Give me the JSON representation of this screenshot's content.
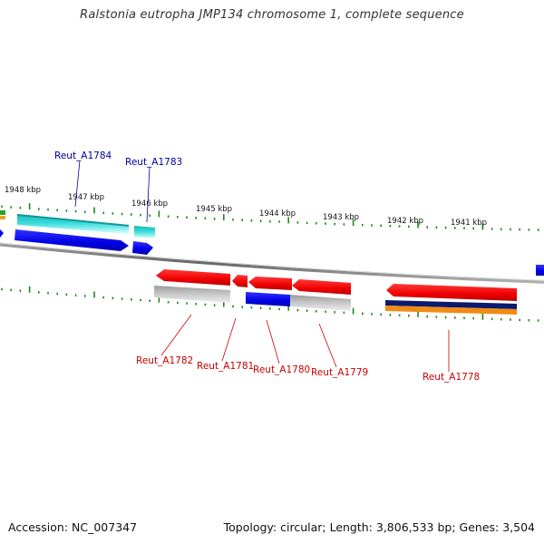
{
  "title": "Ralstonia eutropha JMP134 chromosome 1, complete sequence",
  "footer": {
    "accession": "Accession: NC_007347",
    "summary": "Topology: circular; Length: 3,806,533 bp; Genes: 3,504"
  },
  "scale_labels": [
    "1948 kbp",
    "1947 kbp",
    "1946 kbp",
    "1945 kbp",
    "1944 kbp",
    "1943 kbp",
    "1942 kbp",
    "1941 kbp"
  ],
  "genes_top": [
    {
      "label": "Reut_A1784",
      "color": "#000099"
    },
    {
      "label": "Reut_A1783",
      "color": "#000099"
    }
  ],
  "genes_bottom": [
    {
      "label": "Reut_A1782",
      "color": "#cc0000"
    },
    {
      "label": "Reut_A1781",
      "color": "#cc0000"
    },
    {
      "label": "Reut_A1780",
      "color": "#cc0000"
    },
    {
      "label": "Reut_A1779",
      "color": "#cc0000"
    },
    {
      "label": "Reut_A1778",
      "color": "#cc0000"
    }
  ],
  "colors": {
    "tick": "#1a8a1a",
    "backbone": "#888888",
    "blue": "#0000ee",
    "red": "#ee0000",
    "cyan": "#19c8c8",
    "gray": "#b4b4b4",
    "navy": "#0a1a6e",
    "orange": "#f08c14"
  }
}
